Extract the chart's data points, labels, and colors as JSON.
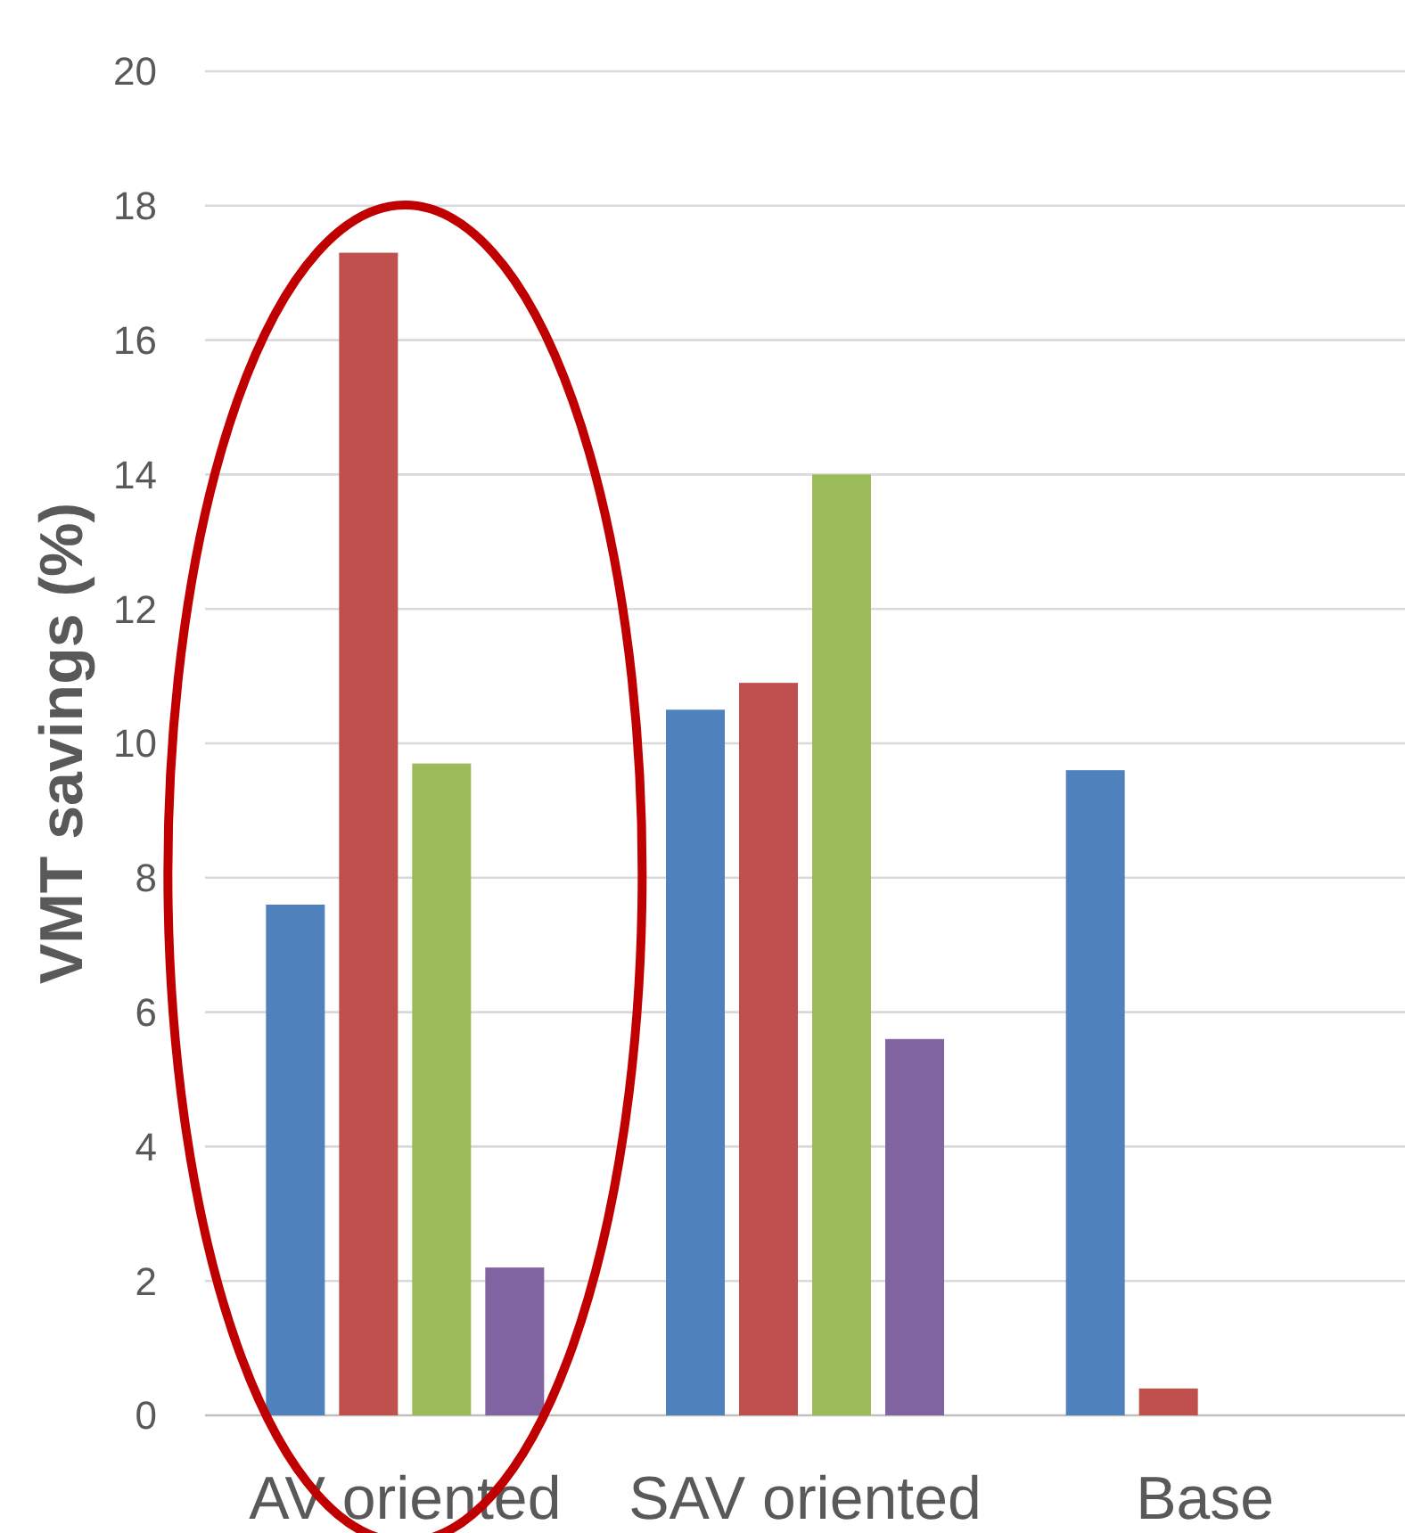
{
  "chart_data": {
    "type": "bar",
    "ylabel": "VMT savings (%)",
    "categories": [
      "AV oriented",
      "SAV oriented",
      "Base"
    ],
    "series": [
      {
        "color": "#4f81bd",
        "values": [
          7.6,
          10.5,
          9.6
        ]
      },
      {
        "color": "#c0504d",
        "values": [
          17.3,
          10.9,
          0.4
        ]
      },
      {
        "color": "#9bbb59",
        "values": [
          9.7,
          14.0,
          0
        ]
      },
      {
        "color": "#8064a2",
        "values": [
          2.2,
          5.6,
          0
        ]
      }
    ],
    "ylim": [
      0,
      20
    ],
    "yticks": [
      0,
      2,
      4,
      6,
      8,
      10,
      12,
      14,
      16,
      18,
      20
    ],
    "grid": "y"
  }
}
